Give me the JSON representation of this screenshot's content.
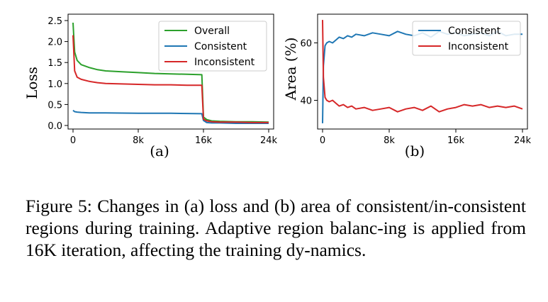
{
  "chart_data": [
    {
      "type": "line",
      "ylabel": "Loss",
      "sublabel": "(a)",
      "xlim": [
        0,
        24000
      ],
      "ylim": [
        0,
        2.5
      ],
      "x_ticks": [
        0,
        8000,
        16000,
        24000
      ],
      "x_tick_labels": [
        "0",
        "8k",
        "16k",
        "24k"
      ],
      "y_ticks": [
        0.0,
        0.5,
        1.0,
        1.5,
        2.0,
        2.5
      ],
      "y_tick_labels": [
        "0.0",
        "0.5",
        "1.0",
        "1.5",
        "2.0",
        "2.5"
      ],
      "grid": false,
      "legend_position": "top-right",
      "series": [
        {
          "name": "Overall",
          "color": "#2ca02c",
          "x": [
            0,
            200,
            500,
            1000,
            2000,
            3000,
            4000,
            6000,
            8000,
            10000,
            12000,
            14000,
            15800,
            16000,
            16400,
            17000,
            18000,
            20000,
            22000,
            24000
          ],
          "y": [
            2.45,
            1.75,
            1.55,
            1.45,
            1.38,
            1.33,
            1.3,
            1.28,
            1.26,
            1.24,
            1.23,
            1.22,
            1.21,
            0.2,
            0.14,
            0.11,
            0.1,
            0.09,
            0.09,
            0.08
          ]
        },
        {
          "name": "Consistent",
          "color": "#1f77b4",
          "x": [
            0,
            200,
            500,
            1000,
            2000,
            4000,
            8000,
            12000,
            15800,
            16000,
            16400,
            17000,
            18000,
            20000,
            22000,
            24000
          ],
          "y": [
            0.36,
            0.33,
            0.32,
            0.31,
            0.3,
            0.3,
            0.29,
            0.29,
            0.28,
            0.12,
            0.07,
            0.06,
            0.06,
            0.05,
            0.05,
            0.05
          ]
        },
        {
          "name": "Inconsistent",
          "color": "#d62728",
          "x": [
            0,
            200,
            500,
            1000,
            2000,
            3000,
            4000,
            6000,
            8000,
            10000,
            12000,
            14000,
            15800,
            16000,
            16400,
            17000,
            18000,
            20000,
            22000,
            24000
          ],
          "y": [
            2.15,
            1.3,
            1.15,
            1.1,
            1.05,
            1.02,
            1.0,
            0.99,
            0.98,
            0.97,
            0.97,
            0.96,
            0.96,
            0.15,
            0.11,
            0.09,
            0.08,
            0.08,
            0.07,
            0.07
          ]
        }
      ]
    },
    {
      "type": "line",
      "ylabel": "Area (%)",
      "sublabel": "(b)",
      "xlim": [
        0,
        24000
      ],
      "ylim": [
        30,
        70
      ],
      "x_ticks": [
        0,
        8000,
        16000,
        24000
      ],
      "x_tick_labels": [
        "0",
        "8k",
        "16k",
        "24k"
      ],
      "y_ticks": [
        40,
        60
      ],
      "y_tick_labels": [
        "40",
        "60"
      ],
      "grid": false,
      "legend_position": "top-right",
      "series": [
        {
          "name": "Consistent",
          "color": "#1f77b4",
          "x": [
            0,
            100,
            300,
            500,
            800,
            1200,
            1600,
            2000,
            2500,
            3000,
            3500,
            4000,
            5000,
            6000,
            7000,
            8000,
            9000,
            10000,
            11000,
            12000,
            13000,
            14000,
            15000,
            16000,
            17000,
            18000,
            19000,
            20000,
            21000,
            22000,
            23000,
            24000
          ],
          "y": [
            32,
            52,
            59,
            60,
            60.5,
            60,
            61,
            62,
            61.5,
            62.5,
            62,
            63,
            62.5,
            63.5,
            63,
            62.5,
            64,
            63,
            62.5,
            63.5,
            62,
            64,
            63,
            63.5,
            62.5,
            63,
            63.5,
            62.5,
            64,
            62.5,
            63,
            63
          ]
        },
        {
          "name": "Inconsistent",
          "color": "#d62728",
          "x": [
            0,
            100,
            300,
            500,
            800,
            1200,
            1600,
            2000,
            2500,
            3000,
            3500,
            4000,
            5000,
            6000,
            7000,
            8000,
            9000,
            10000,
            11000,
            12000,
            13000,
            14000,
            15000,
            16000,
            17000,
            18000,
            19000,
            20000,
            21000,
            22000,
            23000,
            24000
          ],
          "y": [
            68,
            48,
            41,
            40,
            39.5,
            40,
            39,
            38,
            38.5,
            37.5,
            38,
            37,
            37.5,
            36.5,
            37,
            37.5,
            36,
            37,
            37.5,
            36.5,
            38,
            36,
            37,
            37.5,
            38.5,
            38,
            38.5,
            37.5,
            38,
            37.5,
            38,
            37
          ]
        }
      ]
    }
  ],
  "caption": "Figure 5: Changes in (a) loss and (b) area of consistent/in-consistent regions during training. Adaptive region balanc-ing is applied from 16K iteration, affecting the training dy-namics."
}
